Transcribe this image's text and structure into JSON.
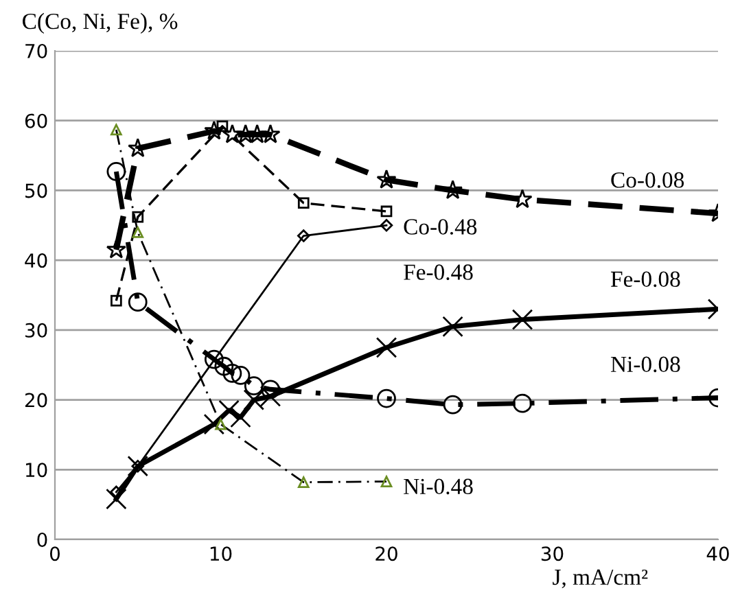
{
  "chart_data": {
    "type": "line",
    "ylabel": "C(Co, Ni, Fe), %",
    "xlabel": "J, mA/cm²",
    "xlim": [
      0,
      40
    ],
    "xticks": [
      0,
      10,
      20,
      30,
      40
    ],
    "ylim": [
      0,
      70
    ],
    "yticks": [
      0,
      10,
      20,
      30,
      40,
      50,
      60,
      70
    ],
    "grid": "y",
    "legend": false,
    "series": [
      {
        "name": "Co-0.08",
        "color": "#000000",
        "marker": "star",
        "line_style": "dashed",
        "x": [
          3.7,
          5,
          9.6,
          10.7,
          11.5,
          12.2,
          13,
          20,
          24,
          28.2,
          40
        ],
        "values": [
          41.5,
          56,
          58.5,
          58,
          58,
          58,
          58,
          51.5,
          50,
          48.7,
          46.7
        ]
      },
      {
        "name": "Co-0.48",
        "color": "#000000",
        "marker": "square",
        "line_style": "dashed",
        "x": [
          3.7,
          5,
          10.1,
          15,
          20
        ],
        "values": [
          34.2,
          46.2,
          59.2,
          48.2,
          47
        ]
      },
      {
        "name": "Fe-0.48",
        "color": "#000000",
        "marker": "diamond",
        "line_style": "solid",
        "x": [
          3.7,
          5,
          15,
          20
        ],
        "values": [
          6.8,
          10.5,
          43.5,
          45
        ]
      },
      {
        "name": "Fe-0.08",
        "color": "#000000",
        "marker": "cross",
        "line_style": "solid",
        "x": [
          3.7,
          5,
          9.6,
          10.5,
          11.2,
          12,
          13,
          20,
          24,
          28.2,
          40
        ],
        "values": [
          5.8,
          10.5,
          16.5,
          18.5,
          17.5,
          20,
          20.5,
          27.5,
          30.5,
          31.5,
          33
        ]
      },
      {
        "name": "Ni-0.08",
        "color": "#000000",
        "marker": "circle",
        "line_style": "dashdot",
        "x": [
          3.7,
          5,
          9.6,
          10.2,
          10.7,
          11.2,
          12,
          13,
          20,
          24,
          28.2,
          40
        ],
        "values": [
          52.7,
          34,
          25.8,
          24.8,
          23.8,
          23.5,
          22,
          21.5,
          20.2,
          19.3,
          19.5,
          20.3
        ]
      },
      {
        "name": "Ni-0.48",
        "color": "#6b8e23",
        "marker": "triangle",
        "line_style": "dashdot",
        "x": [
          3.7,
          5,
          10,
          15,
          20
        ],
        "values": [
          58.7,
          44,
          16.5,
          8.2,
          8.3
        ]
      }
    ]
  }
}
